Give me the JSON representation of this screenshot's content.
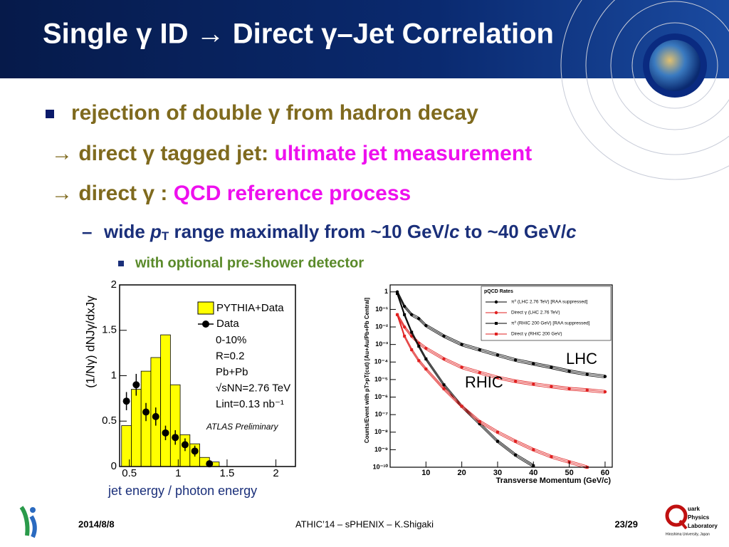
{
  "header": {
    "title": "Single γ ID → Direct γ–Jet Correlation"
  },
  "bullets": [
    {
      "parts": [
        "rejection of double γ from hadron decay"
      ]
    },
    {
      "parts": [
        "→ direct γ tagged jet: ",
        "ultimate jet measurement"
      ]
    },
    {
      "parts": [
        "→ direct γ : ",
        "QCD reference process"
      ]
    },
    {
      "marker": "–",
      "parts": [
        "wide ",
        "p",
        "T",
        " range maximally from ~10 GeV/",
        "c",
        " to ~40 GeV/",
        "c"
      ]
    },
    {
      "parts": [
        "with optional pre-shower detector"
      ]
    }
  ],
  "chart_data": [
    {
      "type": "histogram",
      "ylabel": "(1/Nγ) dNJγ/dxJγ",
      "xlim": [
        0.4,
        2.2
      ],
      "ylim": [
        0,
        2
      ],
      "xticks": [
        0.5,
        1,
        1.5,
        2
      ],
      "yticks": [
        0,
        0.5,
        1,
        1.5,
        2
      ],
      "bins": [
        0.42,
        0.52,
        0.62,
        0.72,
        0.82,
        0.92,
        1.02,
        1.12,
        1.22,
        1.32,
        1.42
      ],
      "series": [
        {
          "name": "PYTHIA+Data",
          "color": "#ffff00",
          "values": [
            0.45,
            0.85,
            1.05,
            1.2,
            1.45,
            0.9,
            0.35,
            0.25,
            0.1,
            0.05
          ]
        },
        {
          "name": "Data",
          "color": "#000000",
          "x": [
            0.47,
            0.57,
            0.67,
            0.77,
            0.87,
            0.97,
            1.07,
            1.17,
            1.32
          ],
          "values": [
            0.72,
            0.9,
            0.6,
            0.55,
            0.37,
            0.32,
            0.24,
            0.17,
            0.03
          ],
          "errors": [
            0.1,
            0.12,
            0.1,
            0.1,
            0.08,
            0.08,
            0.07,
            0.06,
            0.03
          ]
        }
      ],
      "annotations": [
        "0-10%",
        "R=0.2",
        "Pb+Pb",
        "√sNN=2.76 TeV",
        "Lint=0.13 nb⁻¹",
        "ATLAS Preliminary"
      ]
    },
    {
      "type": "line",
      "log_y": true,
      "legend_title": "pQCD Rates",
      "xlabel": "Transverse Momentum (GeV/c)",
      "ylabel": "Counts/Event with pT>pT(cut) [Au+Au/Pb+Pb Central]",
      "xlim": [
        0,
        62
      ],
      "ylim": [
        1e-10,
        2.5
      ],
      "xticks": [
        10,
        20,
        30,
        40,
        50,
        60
      ],
      "yticks": [
        {
          "value": 1e-10,
          "label": "10⁻¹⁰"
        },
        {
          "value": 1e-09,
          "label": "10⁻⁹"
        },
        {
          "value": 1e-08,
          "label": "10⁻⁸"
        },
        {
          "value": 1e-07,
          "label": "10⁻⁷"
        },
        {
          "value": 1e-06,
          "label": "10⁻⁶"
        },
        {
          "value": 1e-05,
          "label": "10⁻⁵"
        },
        {
          "value": 0.0001,
          "label": "10⁻⁴"
        },
        {
          "value": 0.001,
          "label": "10⁻³"
        },
        {
          "value": 0.01,
          "label": "10⁻²"
        },
        {
          "value": 0.1,
          "label": "10⁻¹"
        },
        1
      ],
      "x": [
        2,
        4,
        6,
        8,
        10,
        15,
        20,
        25,
        30,
        35,
        40,
        45,
        50,
        55,
        60
      ],
      "series": [
        {
          "name": "π⁰ (LHC 2.76 TeV) [RAA suppressed]",
          "color": "#000000",
          "marker": "circle",
          "values": [
            1,
            0.15,
            0.05,
            0.03,
            0.012,
            0.003,
            0.001,
            0.0005,
            0.00025,
            0.00013,
            8e-05,
            5e-05,
            3e-05,
            2e-05,
            1.5e-05
          ]
        },
        {
          "name": "Direct γ (LHC 2.76 TeV)",
          "color": "#e02020",
          "marker": "circle",
          "values": [
            0.05,
            0.01,
            0.003,
            0.0012,
            0.0006,
            0.00015,
            5e-05,
            2.5e-05,
            1.3e-05,
            8e-06,
            5.5e-06,
            4e-06,
            3e-06,
            2.5e-06,
            2e-06
          ]
        },
        {
          "name": "π⁰ (RHIC 200 GeV) [RAA suppressed]",
          "color": "#000000",
          "marker": "square",
          "values": [
            0.8,
            0.05,
            0.005,
            0.0008,
            0.00015,
            5e-06,
            3e-07,
            3e-08,
            3e-09,
            5e-10,
            1.2e-10,
            null,
            null,
            null,
            null
          ]
        },
        {
          "name": "Direct γ (RHIC 200 GeV)",
          "color": "#e02020",
          "marker": "square",
          "values": [
            0.05,
            0.003,
            0.0005,
            0.00012,
            4e-05,
            3e-06,
            3e-07,
            4e-08,
            1e-08,
            3e-09,
            1e-09,
            4e-10,
            2e-10,
            1e-10,
            null
          ]
        }
      ],
      "annotations": [
        "LHC",
        "RHIC"
      ]
    }
  ],
  "caption": "jet energy / photon energy",
  "footer": {
    "date": "2014/8/8",
    "center": "ATHIC’14 – sPHENIX – K.Shigaki",
    "page": "23/29"
  },
  "logo": {
    "lines": [
      "uark",
      "Physics",
      "Laboratory",
      "Hiroshima University, Japan"
    ]
  }
}
